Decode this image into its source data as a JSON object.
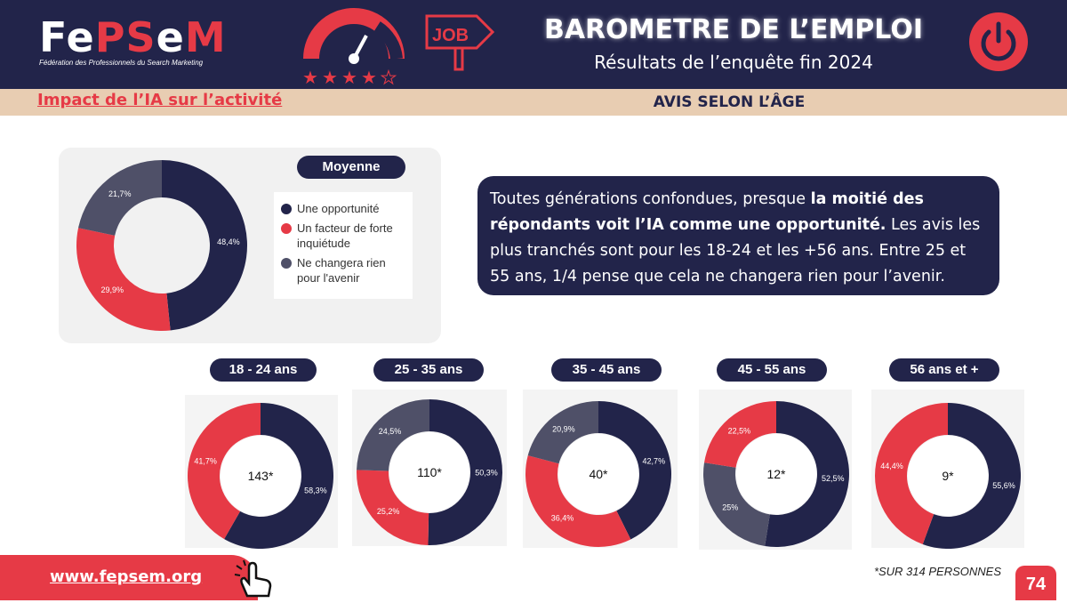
{
  "header": {
    "logo_parts": [
      "Fe",
      "PS",
      "e",
      "M"
    ],
    "logo_sub": "Fédération des Professionnels du Search Marketing",
    "job_label": "JOB",
    "title": "BAROMETRE DE L’EMPLOI",
    "subtitle": "Résultats de l’enquête fin 2024"
  },
  "section": {
    "impact_title": "Impact de l’IA sur l’activité",
    "age_title": "AVIS SELON L’ÂGE"
  },
  "summary": {
    "p1": "Toutes générations confondues, presque ",
    "bold": "la moitié des répondants voit l’IA comme une opportunité.",
    "p2": " Les avis les plus tranchés sont pour les 18-24 et les +56 ans. Entre 25 et 55 ans, 1/4 pense que cela ne changera rien pour l’avenir."
  },
  "footer": {
    "url": "www.fepsem.org",
    "footnote": "*SUR 314 PERSONNES",
    "page": "74"
  },
  "colors": {
    "opportunite": "#22244a",
    "inquietude": "#e63a46",
    "rien": "#4f5068",
    "header_bg": "#22244a",
    "accent": "#e63a46",
    "subbar": "#e8cdb2"
  },
  "chart_data": [
    {
      "type": "pie",
      "title": "Moyenne",
      "legend": [
        "Une opportunité",
        "Un facteur de forte inquiétude",
        "Ne changera rien pour l'avenir"
      ],
      "slices": [
        {
          "label": "Une opportunité",
          "value": 48.4,
          "display": "48,4%"
        },
        {
          "label": "Un facteur de forte inquiétude",
          "value": 29.9,
          "display": "29,9%"
        },
        {
          "label": "Ne changera rien pour l'avenir",
          "value": 21.7,
          "display": "21,7%"
        }
      ]
    },
    {
      "type": "pie",
      "title": "18 - 24 ans",
      "center": "143*",
      "slices": [
        {
          "label": "Une opportunité",
          "value": 58.3,
          "display": "58,3%"
        },
        {
          "label": "Un facteur de forte inquiétude",
          "value": 41.7,
          "display": "41,7%"
        }
      ]
    },
    {
      "type": "pie",
      "title": "25 - 35 ans",
      "center": "110*",
      "slices": [
        {
          "label": "Une opportunité",
          "value": 50.3,
          "display": "50,3%"
        },
        {
          "label": "Un facteur de forte inquiétude",
          "value": 25.2,
          "display": "25,2%"
        },
        {
          "label": "Ne changera rien pour l'avenir",
          "value": 24.5,
          "display": "24,5%"
        }
      ]
    },
    {
      "type": "pie",
      "title": "35 - 45 ans",
      "center": "40*",
      "slices": [
        {
          "label": "Une opportunité",
          "value": 42.7,
          "display": "42,7%"
        },
        {
          "label": "Un facteur de forte inquiétude",
          "value": 36.4,
          "display": "36,4%"
        },
        {
          "label": "Ne changera rien pour l'avenir",
          "value": 20.9,
          "display": "20,9%"
        }
      ]
    },
    {
      "type": "pie",
      "title": "45 - 55 ans",
      "center": "12*",
      "slices": [
        {
          "label": "Une opportunité",
          "value": 52.5,
          "display": "52,5%"
        },
        {
          "label": "Ne changera rien pour l'avenir",
          "value": 25,
          "display": "25%"
        },
        {
          "label": "Un facteur de forte inquiétude",
          "value": 22.5,
          "display": "22,5%"
        }
      ]
    },
    {
      "type": "pie",
      "title": "56 ans et +",
      "center": "9*",
      "slices": [
        {
          "label": "Une opportunité",
          "value": 55.6,
          "display": "55,6%"
        },
        {
          "label": "Un facteur de forte inquiétude",
          "value": 44.4,
          "display": "44,4%"
        }
      ]
    }
  ]
}
